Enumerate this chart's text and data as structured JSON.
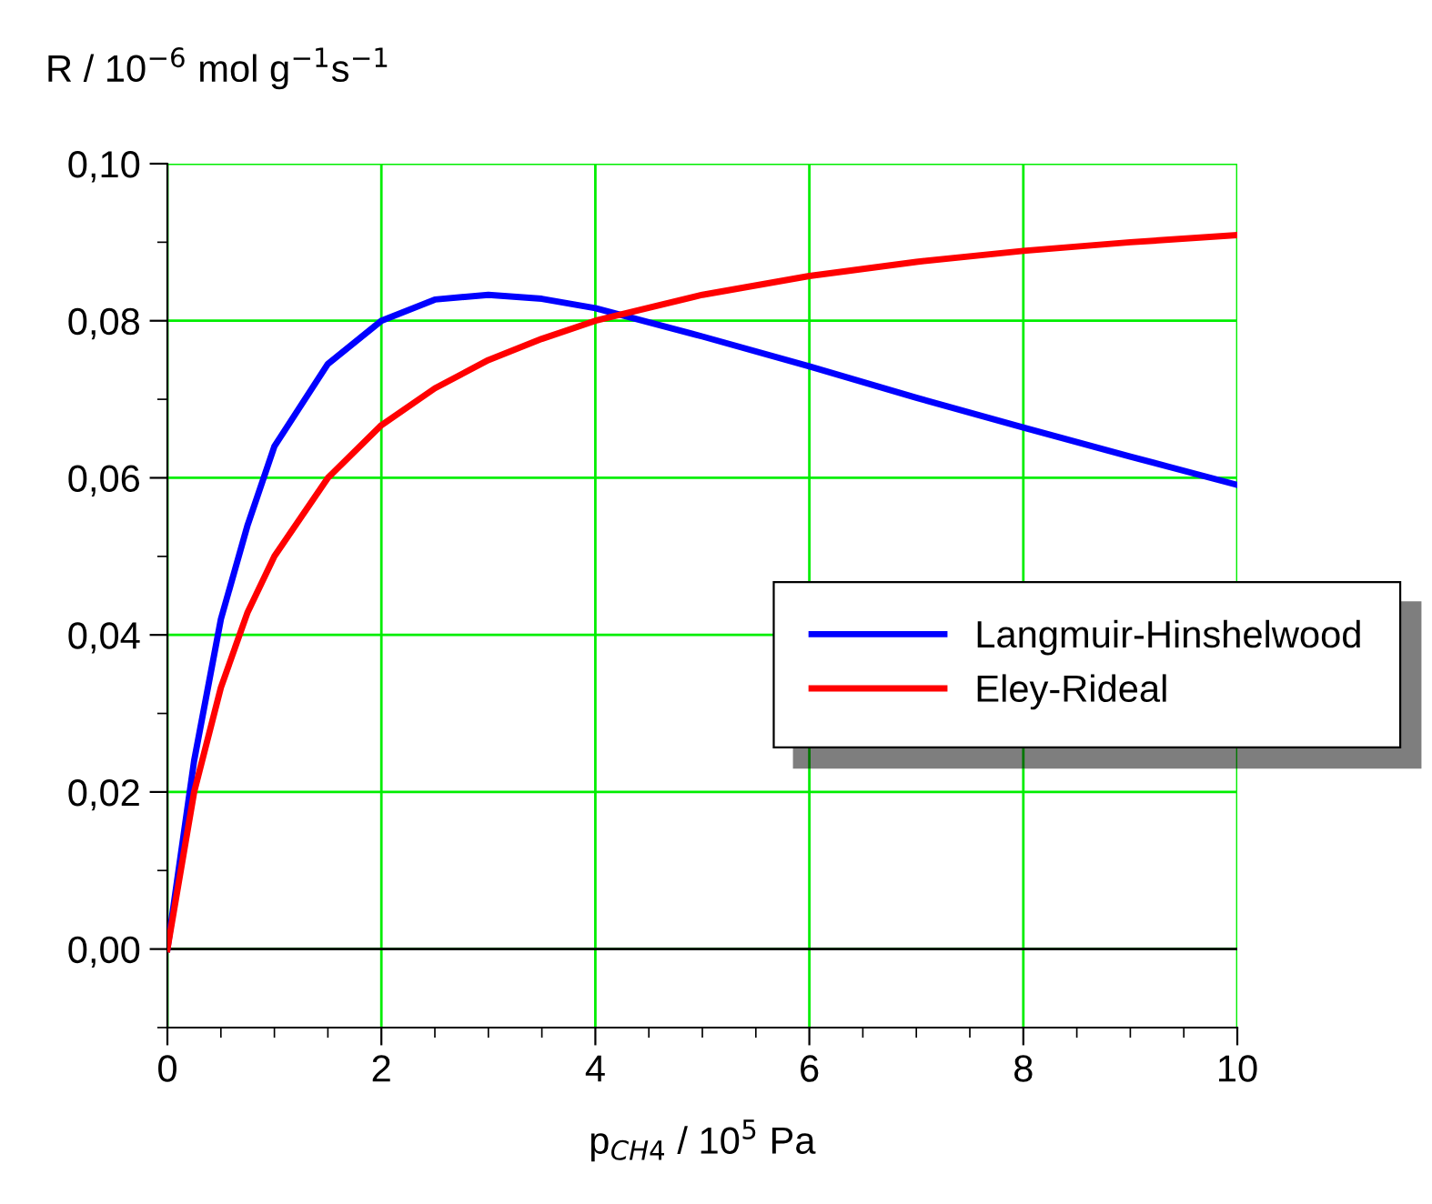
{
  "chart_data": {
    "type": "line",
    "xlabel": "p$_{CH4}$ / 10$^{5}$ Pa",
    "ylabel": "R / 10$^{−6}$ mol g$^{−1}$s$^{−1}$",
    "x": [
      0,
      0.25,
      0.5,
      0.75,
      1,
      1.5,
      2,
      2.5,
      3,
      3.5,
      4,
      5,
      6,
      7,
      8,
      9,
      10
    ],
    "series": [
      {
        "name": "Langmuir-Hinshelwood",
        "color": "#0000ff",
        "values": [
          0,
          0.024,
          0.042,
          0.054,
          0.064,
          0.0745,
          0.08,
          0.0827,
          0.0833,
          0.0828,
          0.0816,
          0.078,
          0.0742,
          0.0702,
          0.0664,
          0.0627,
          0.0591
        ]
      },
      {
        "name": "Eley-Rideal",
        "color": "#ff0000",
        "values": [
          0,
          0.02,
          0.0333,
          0.0429,
          0.05,
          0.06,
          0.0667,
          0.0714,
          0.075,
          0.0777,
          0.08,
          0.0833,
          0.0857,
          0.0875,
          0.0889,
          0.09,
          0.0909
        ]
      }
    ],
    "xlim": [
      0,
      10
    ],
    "ylim": [
      -0.01,
      0.1
    ],
    "xticks": [
      0,
      2,
      4,
      6,
      8,
      10
    ],
    "yticks": [
      {
        "value": 0,
        "label": "0,00"
      },
      {
        "value": 0.02,
        "label": "0,02"
      },
      {
        "value": 0.04,
        "label": "0,04"
      },
      {
        "value": 0.06,
        "label": "0,06"
      },
      {
        "value": 0.08,
        "label": "0,08"
      },
      {
        "value": 0.1,
        "label": "0,10"
      }
    ],
    "ref_lines": [
      {
        "axis": "y",
        "value": 0,
        "color": "#000000"
      }
    ],
    "grid": true,
    "legend": "right",
    "line_style": "solid",
    "marker": "none"
  }
}
